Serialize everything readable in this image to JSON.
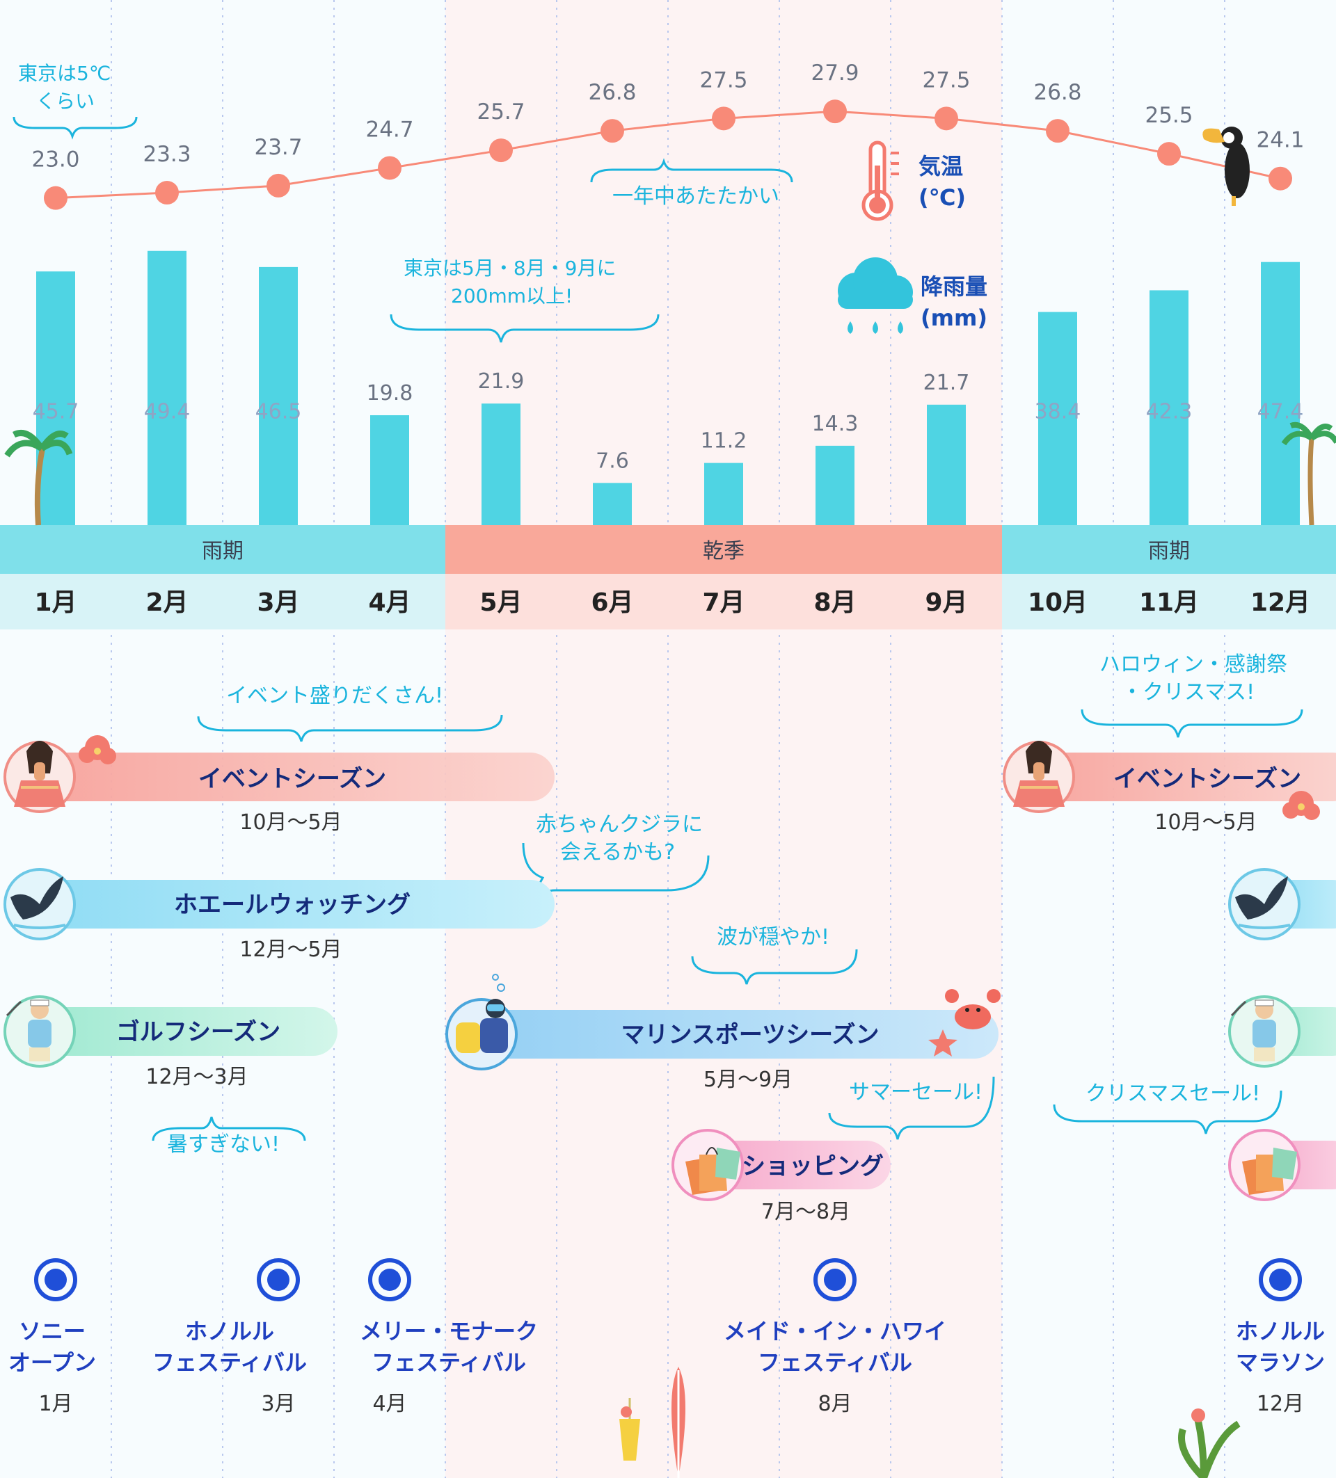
{
  "chart_data": {
    "type": "bar+line",
    "categories": [
      "1月",
      "2月",
      "3月",
      "4月",
      "5月",
      "6月",
      "7月",
      "8月",
      "9月",
      "10月",
      "11月",
      "12月"
    ],
    "temperature": {
      "label_line1": "気温",
      "label_line2": "(℃)",
      "color": "#f88a78",
      "values": [
        23.0,
        23.3,
        23.7,
        24.7,
        25.7,
        26.8,
        27.5,
        27.9,
        27.5,
        26.8,
        25.5,
        24.1
      ],
      "ylim": [
        22.2,
        28.3
      ]
    },
    "rainfall": {
      "label_line1": "降雨量",
      "label_line2": "(mm)",
      "color": "#4fd4e3",
      "values": [
        45.7,
        49.4,
        46.5,
        19.8,
        21.9,
        7.6,
        11.2,
        14.3,
        21.7,
        38.4,
        42.3,
        47.4
      ],
      "ylim": [
        0,
        52
      ]
    },
    "seasons": [
      {
        "name": "雨期",
        "start": 0,
        "end": 3,
        "color": "#7fe0ea",
        "row_color": "#d8f3f7"
      },
      {
        "name": "乾季",
        "start": 4,
        "end": 8,
        "color": "#f9a89a",
        "row_color": "#fde0dc"
      },
      {
        "name": "雨期",
        "start": 9,
        "end": 11,
        "color": "#7fe0ea",
        "row_color": "#d8f3f7"
      }
    ]
  },
  "annotations": {
    "tokyo_temp": [
      "東京は5℃",
      "くらい"
    ],
    "warm": "一年中あたたかい",
    "tokyo_rain": [
      "東京は5月・8月・9月に",
      "200mm以上!"
    ],
    "events_many": "イベント盛りだくさん!",
    "halloween": [
      "ハロウィン・感謝祭",
      "・クリスマス!"
    ],
    "baby_whale": [
      "赤ちゃんクジラに",
      "会えるかも?"
    ],
    "calm_waves": "波が穏やか!",
    "not_hot": "暑すぎない!",
    "summer_sale": "サマーセール!",
    "xmas_sale": "クリスマスセール!"
  },
  "activities": [
    {
      "label": "イベントシーズン",
      "range": "10月〜5月",
      "color": "#f9a8a0",
      "icon": "hula-dancer-icon"
    },
    {
      "label": "ホエールウォッチング",
      "range": "12月〜5月",
      "color": "#9fe2f6",
      "icon": "whale-tail-icon"
    },
    {
      "label": "ゴルフシーズン",
      "range": "12月〜3月",
      "color": "#a6ecd6",
      "icon": "golfer-icon"
    },
    {
      "label": "マリンスポーツシーズン",
      "range": "5月〜9月",
      "color": "#9fd4f4",
      "icon": "scuba-diver-icon"
    },
    {
      "label": "ショッピング",
      "range": "7月〜8月",
      "color": "#f8b6d4",
      "icon": "shopping-bags-icon"
    }
  ],
  "events": [
    {
      "name": [
        "ソニー",
        "オープン"
      ],
      "month": "1月"
    },
    {
      "name": [
        "ホノルル",
        "フェスティバル"
      ],
      "month": "3月"
    },
    {
      "name": [
        "メリー・モナーク",
        "フェスティバル"
      ],
      "month": "4月"
    },
    {
      "name": [
        "メイド・イン・ハワイ",
        "フェスティバル"
      ],
      "month": "8月"
    },
    {
      "name": [
        "ホノルル",
        "マラソン"
      ],
      "month": "12月"
    }
  ]
}
